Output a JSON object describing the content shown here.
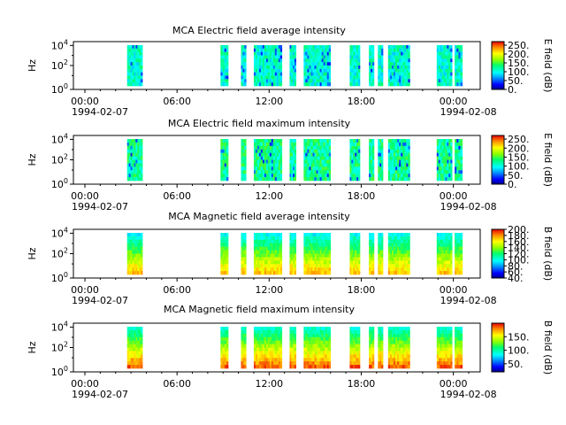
{
  "chart_data": [
    {
      "type": "heatmap",
      "title": "MCA  Electric field average intensity",
      "ylabel": "Hz",
      "colorbar_label": "E field (dB)",
      "colorbar_ticks": [
        "250.",
        "200.",
        "150.",
        "100.",
        "50.",
        "0."
      ],
      "colorbar_range": [
        0,
        270
      ],
      "y_ticks": [
        "10^4",
        "10^2",
        "10^0"
      ],
      "y_scale": "log",
      "x_ticks": [
        "00:00",
        "06:00",
        "12:00",
        "18:00",
        "00:00"
      ],
      "x_date_labels": [
        "1994-02-07",
        "1994-02-08"
      ],
      "xlim": [
        "1994-02-07T00:00",
        "1994-02-08T00:00"
      ],
      "data_intervals": [
        [
          "02:45",
          "03:45"
        ],
        [
          "08:50",
          "09:20"
        ],
        [
          "10:10",
          "10:30"
        ],
        [
          "11:00",
          "12:50"
        ],
        [
          "13:20",
          "13:45"
        ],
        [
          "14:15",
          "16:00"
        ],
        [
          "17:15",
          "17:55"
        ],
        [
          "18:30",
          "18:50"
        ],
        [
          "19:05",
          "19:25"
        ],
        [
          "19:45",
          "21:10"
        ],
        [
          "22:55",
          "23:55"
        ],
        [
          "00:05",
          "00:35"
        ]
      ],
      "palette": "rainbow",
      "dominant_level": "cyan-green (~100 dB)"
    },
    {
      "type": "heatmap",
      "title": "MCA  Electric field maximum intensity",
      "ylabel": "Hz",
      "colorbar_label": "E field (dB)",
      "colorbar_ticks": [
        "250.",
        "200.",
        "150.",
        "100.",
        "50.",
        "0."
      ],
      "colorbar_range": [
        0,
        270
      ],
      "y_ticks": [
        "10^4",
        "10^2",
        "10^0"
      ],
      "y_scale": "log",
      "x_ticks": [
        "00:00",
        "06:00",
        "12:00",
        "18:00",
        "00:00"
      ],
      "x_date_labels": [
        "1994-02-07",
        "1994-02-08"
      ],
      "xlim": [
        "1994-02-07T00:00",
        "1994-02-08T00:00"
      ],
      "data_intervals": [
        [
          "02:45",
          "03:45"
        ],
        [
          "08:50",
          "09:20"
        ],
        [
          "10:10",
          "10:30"
        ],
        [
          "11:00",
          "12:50"
        ],
        [
          "13:20",
          "13:45"
        ],
        [
          "14:15",
          "16:00"
        ],
        [
          "17:15",
          "17:55"
        ],
        [
          "18:30",
          "18:50"
        ],
        [
          "19:05",
          "19:25"
        ],
        [
          "19:45",
          "21:10"
        ],
        [
          "22:55",
          "23:55"
        ],
        [
          "00:05",
          "00:35"
        ]
      ],
      "palette": "rainbow",
      "dominant_level": "green (~110 dB)"
    },
    {
      "type": "heatmap",
      "title": "MCA  Magnetic field average intensity",
      "ylabel": "Hz",
      "colorbar_label": "B field (dB)",
      "colorbar_ticks": [
        "200.",
        "180.",
        "160.",
        "140.",
        "120.",
        "100.",
        "80.",
        "60.",
        "40."
      ],
      "colorbar_range": [
        40,
        200
      ],
      "y_ticks": [
        "10^4",
        "10^2",
        "10^0"
      ],
      "y_scale": "log",
      "x_ticks": [
        "00:00",
        "06:00",
        "12:00",
        "18:00",
        "00:00"
      ],
      "x_date_labels": [
        "1994-02-07",
        "1994-02-08"
      ],
      "xlim": [
        "1994-02-07T00:00",
        "1994-02-08T00:00"
      ],
      "data_intervals": [
        [
          "02:45",
          "03:45"
        ],
        [
          "08:50",
          "09:20"
        ],
        [
          "10:10",
          "10:30"
        ],
        [
          "11:00",
          "12:50"
        ],
        [
          "13:20",
          "13:45"
        ],
        [
          "14:15",
          "16:00"
        ],
        [
          "17:15",
          "17:55"
        ],
        [
          "18:30",
          "18:50"
        ],
        [
          "19:05",
          "19:25"
        ],
        [
          "19:45",
          "21:10"
        ],
        [
          "22:55",
          "23:55"
        ],
        [
          "00:05",
          "00:35"
        ]
      ],
      "palette": "rainbow",
      "dominant_level": "cyan top, yellow-orange bottom"
    },
    {
      "type": "heatmap",
      "title": "MCA  Magnetic field maximum intensity",
      "ylabel": "Hz",
      "colorbar_label": "B field (dB)",
      "colorbar_ticks": [
        "150.",
        "100.",
        "50."
      ],
      "colorbar_range": [
        20,
        200
      ],
      "y_ticks": [
        "10^4",
        "10^2",
        "10^0"
      ],
      "y_scale": "log",
      "x_ticks": [
        "00:00",
        "06:00",
        "12:00",
        "18:00",
        "00:00"
      ],
      "x_date_labels": [
        "1994-02-07",
        "1994-02-08"
      ],
      "xlim": [
        "1994-02-07T00:00",
        "1994-02-08T00:00"
      ],
      "data_intervals": [
        [
          "02:45",
          "03:45"
        ],
        [
          "08:50",
          "09:20"
        ],
        [
          "10:10",
          "10:30"
        ],
        [
          "11:00",
          "12:50"
        ],
        [
          "13:20",
          "13:45"
        ],
        [
          "14:15",
          "16:00"
        ],
        [
          "17:15",
          "17:55"
        ],
        [
          "18:30",
          "18:50"
        ],
        [
          "19:05",
          "19:25"
        ],
        [
          "19:45",
          "21:10"
        ],
        [
          "22:55",
          "23:55"
        ],
        [
          "00:05",
          "00:35"
        ]
      ],
      "palette": "rainbow",
      "dominant_level": "cyan top, orange-red bottom"
    }
  ]
}
